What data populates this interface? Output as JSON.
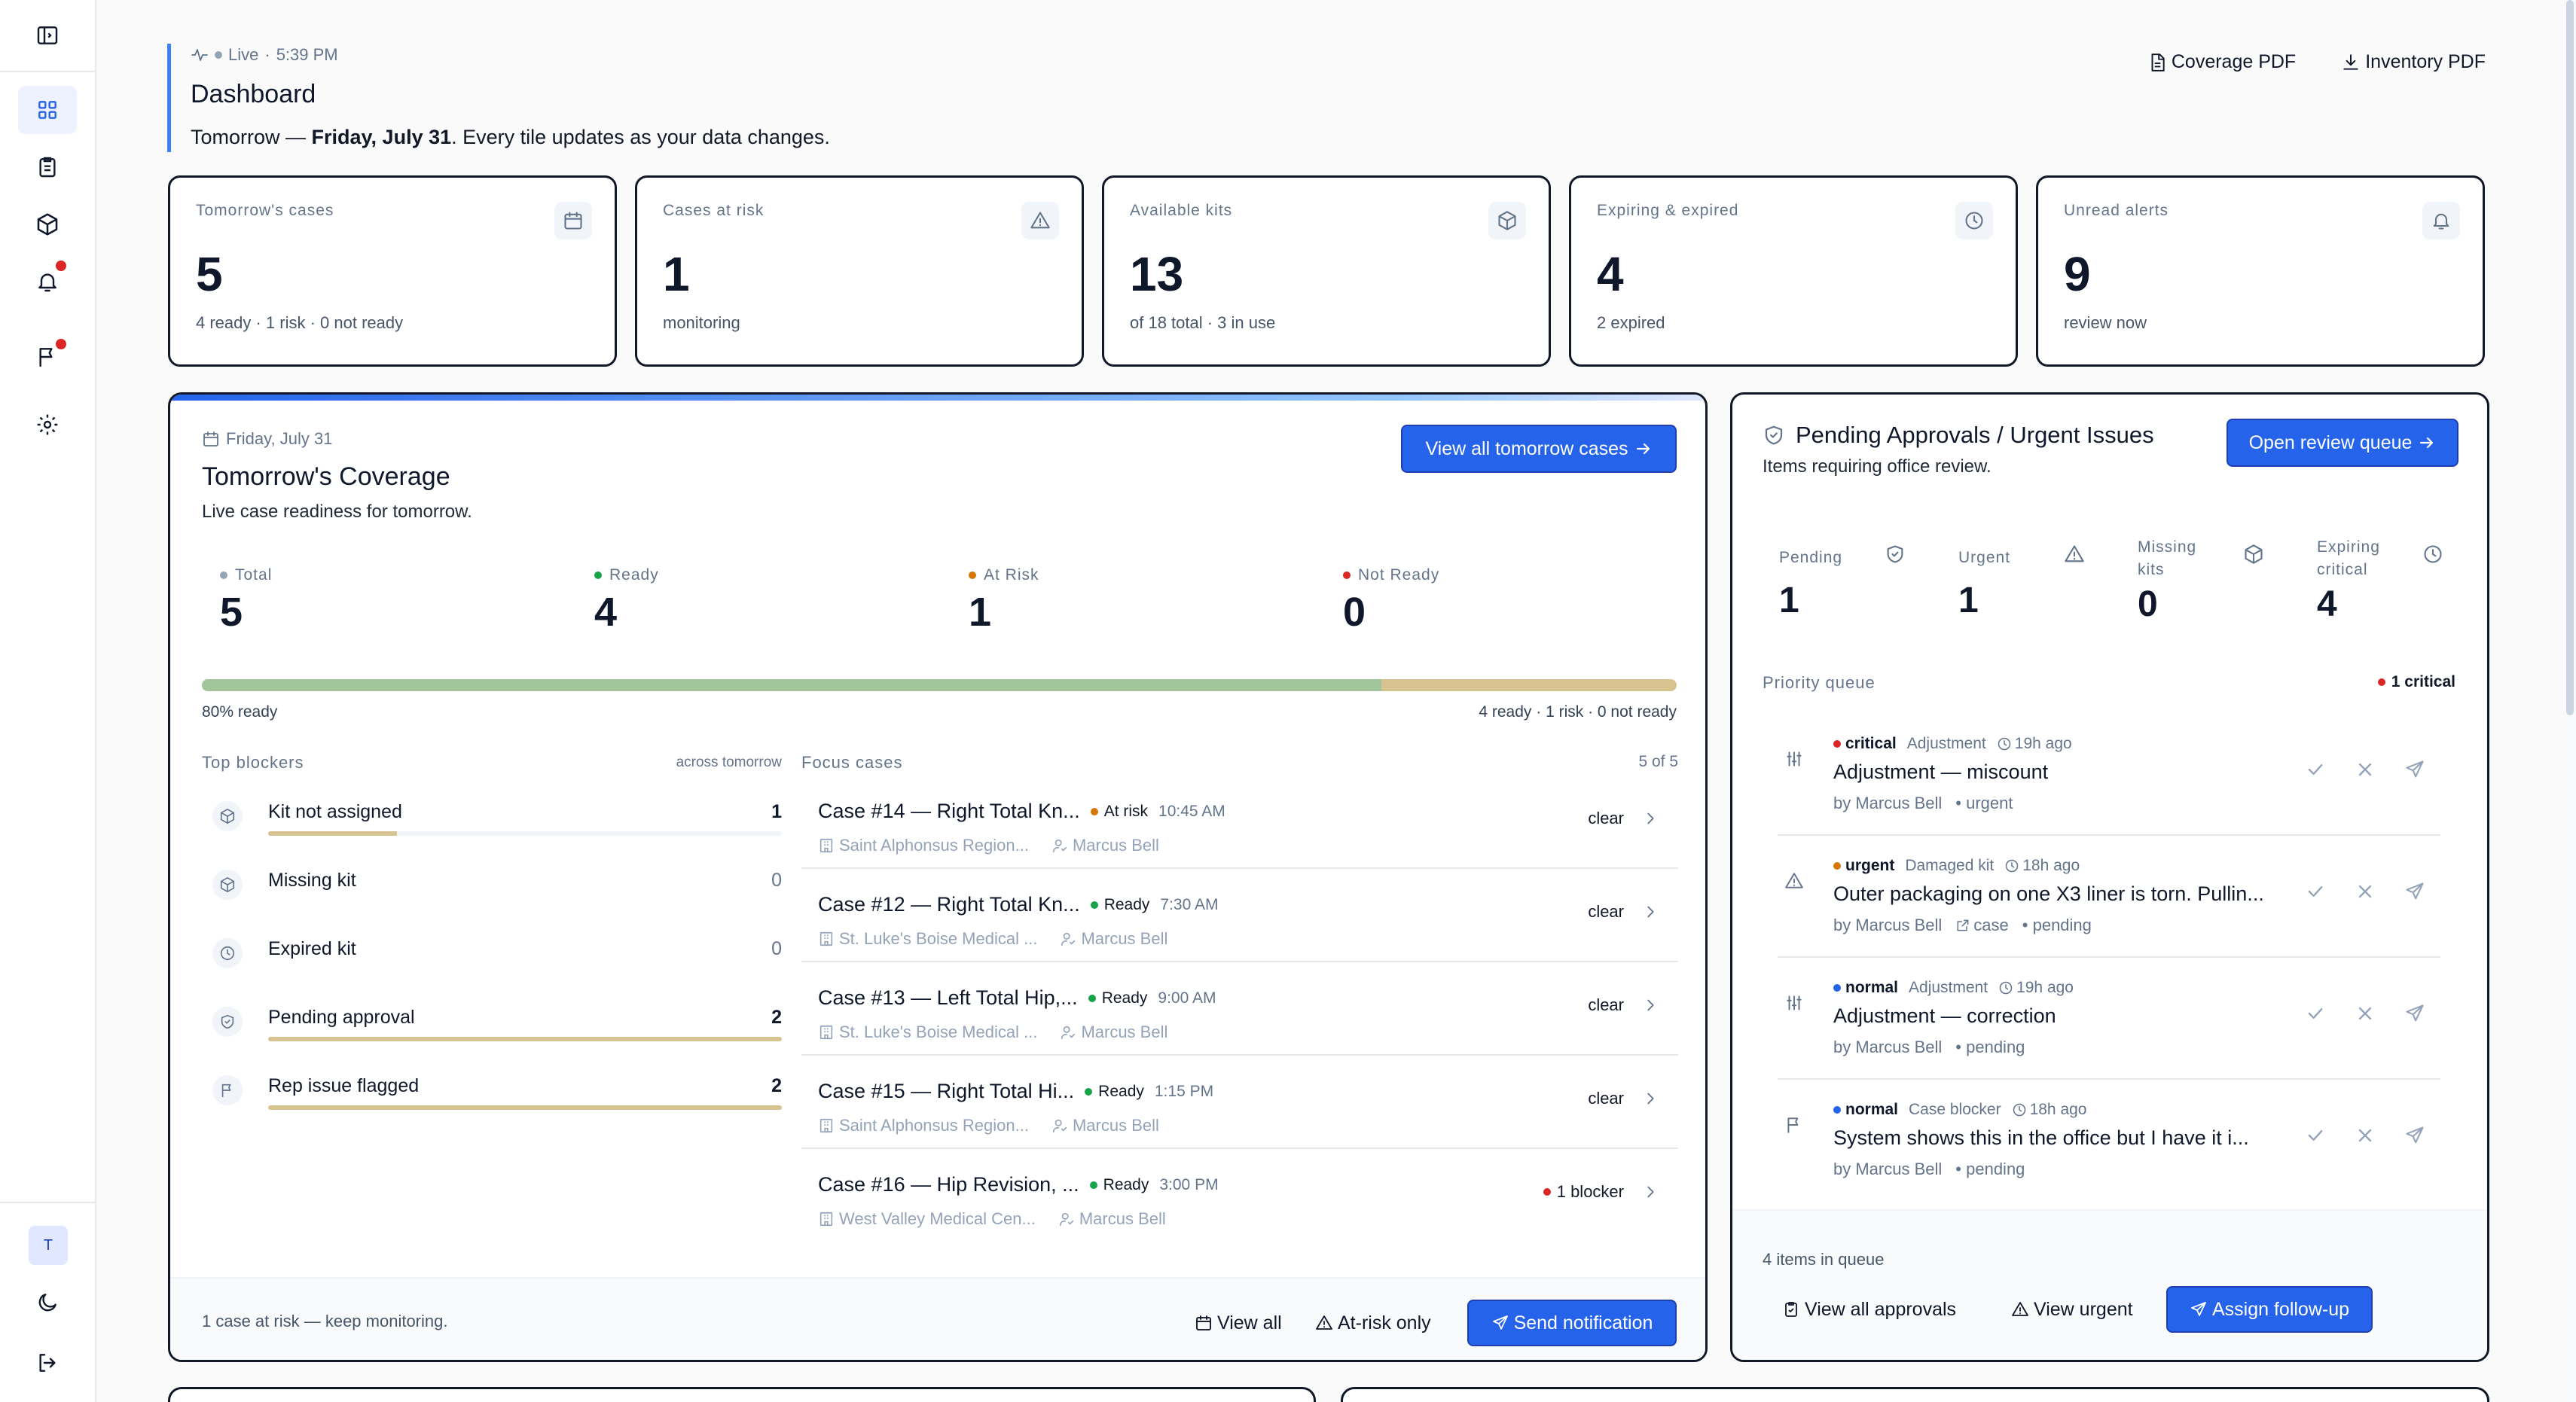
{
  "header": {
    "live": "Live",
    "time": "5:39 PM",
    "title": "Dashboard",
    "subtitle_prefix": "Tomorrow — ",
    "subtitle_date": "Friday, July 31",
    "subtitle_suffix": ". Every tile updates as your data changes.",
    "coverage_pdf": "Coverage PDF",
    "inventory_pdf": "Inventory PDF"
  },
  "sidebar": {
    "avatar": "T"
  },
  "tiles": [
    {
      "label": "Tomorrow's cases",
      "value": "5",
      "sub": "4 ready · 1 risk · 0 not ready",
      "icon": "calendar-icon"
    },
    {
      "label": "Cases at risk",
      "value": "1",
      "sub": "monitoring",
      "icon": "alert-triangle-icon"
    },
    {
      "label": "Available kits",
      "value": "13",
      "sub": "of 18 total · 3 in use",
      "icon": "package-icon"
    },
    {
      "label": "Expiring & expired",
      "value": "4",
      "sub": "2 expired",
      "icon": "clock-icon"
    },
    {
      "label": "Unread alerts",
      "value": "9",
      "sub": "review now",
      "icon": "bell-icon"
    }
  ],
  "coverage": {
    "date": "Friday, July 31",
    "title": "Tomorrow's Coverage",
    "subtitle": "Live case readiness for tomorrow.",
    "view_all_button": "View all tomorrow cases",
    "metrics": [
      {
        "label": "Total",
        "value": "5",
        "color": "#94a3b8"
      },
      {
        "label": "Ready",
        "value": "4",
        "color": "#16a34a"
      },
      {
        "label": "At Risk",
        "value": "1",
        "color": "#d97706"
      },
      {
        "label": "Not Ready",
        "value": "0",
        "color": "#dc2626"
      }
    ],
    "ready_fraction": 0.8,
    "ready_pct": "80% ready",
    "ready_summary": "4 ready · 1 risk · 0 not ready",
    "blockers_title": "Top blockers",
    "blockers_scope": "across tomorrow",
    "blockers": [
      {
        "label": "Kit not assigned",
        "count": 1,
        "icon": "package-icon"
      },
      {
        "label": "Missing kit",
        "count": 0,
        "icon": "package-icon"
      },
      {
        "label": "Expired kit",
        "count": 0,
        "icon": "clock-icon"
      },
      {
        "label": "Pending approval",
        "count": 2,
        "icon": "shield-icon"
      },
      {
        "label": "Rep issue flagged",
        "count": 2,
        "icon": "flag-icon"
      }
    ],
    "blocker_max": 2,
    "focus_title": "Focus cases",
    "focus_count": "5 of 5",
    "cases": [
      {
        "title": "Case #14 — Right Total Kn...",
        "status": "At risk",
        "status_color": "#d97706",
        "time": "10:45 AM",
        "hospital": "Saint Alphonsus Region...",
        "rep": "Marcus Bell",
        "right": "clear"
      },
      {
        "title": "Case #12 — Right Total Kn...",
        "status": "Ready",
        "status_color": "#16a34a",
        "time": "7:30 AM",
        "hospital": "St. Luke's Boise Medical ...",
        "rep": "Marcus Bell",
        "right": "clear"
      },
      {
        "title": "Case #13 — Left Total Hip,...",
        "status": "Ready",
        "status_color": "#16a34a",
        "time": "9:00 AM",
        "hospital": "St. Luke's Boise Medical ...",
        "rep": "Marcus Bell",
        "right": "clear"
      },
      {
        "title": "Case #15 — Right Total Hi...",
        "status": "Ready",
        "status_color": "#16a34a",
        "time": "1:15 PM",
        "hospital": "Saint Alphonsus Region...",
        "rep": "Marcus Bell",
        "right": "clear"
      },
      {
        "title": "Case #16 — Hip Revision, ...",
        "status": "Ready",
        "status_color": "#16a34a",
        "time": "3:00 PM",
        "hospital": "West Valley Medical Cen...",
        "rep": "Marcus Bell",
        "right": "1 blocker"
      }
    ],
    "footer_msg": "1 case at risk — keep monitoring.",
    "footer_view_all": "View all",
    "footer_at_risk": "At-risk only",
    "footer_send": "Send notification"
  },
  "approvals": {
    "title": "Pending Approvals / Urgent Issues",
    "subtitle": "Items requiring office review.",
    "open_button": "Open review queue",
    "metrics": [
      {
        "label": "Pending",
        "value": "1",
        "icon": "shield-icon"
      },
      {
        "label": "Urgent",
        "value": "1",
        "icon": "alert-triangle-icon"
      },
      {
        "label": "Missing kits",
        "value": "0",
        "icon": "package-icon"
      },
      {
        "label": "Expiring critical",
        "value": "4",
        "icon": "clock-icon"
      }
    ],
    "queue_title": "Priority queue",
    "queue_badge": "1 critical",
    "items": [
      {
        "severity": "critical",
        "sev_color": "#dc2626",
        "category": "Adjustment",
        "ago": "19h ago",
        "title": "Adjustment — miscount",
        "by": "by Marcus Bell",
        "link": "",
        "state": "urgent",
        "icon": "sliders-icon"
      },
      {
        "severity": "urgent",
        "sev_color": "#d97706",
        "category": "Damaged kit",
        "ago": "18h ago",
        "title": "Outer packaging on one X3 liner is torn. Pullin...",
        "by": "by Marcus Bell",
        "link": "case",
        "state": "pending",
        "icon": "alert-triangle-icon"
      },
      {
        "severity": "normal",
        "sev_color": "#2563eb",
        "category": "Adjustment",
        "ago": "19h ago",
        "title": "Adjustment — correction",
        "by": "by Marcus Bell",
        "link": "",
        "state": "pending",
        "icon": "sliders-icon"
      },
      {
        "severity": "normal",
        "sev_color": "#2563eb",
        "category": "Case blocker",
        "ago": "18h ago",
        "title": "System shows this in the office but I have it i...",
        "by": "by Marcus Bell",
        "link": "",
        "state": "pending",
        "icon": "flag-icon"
      }
    ],
    "queue_count": "4 items in queue",
    "footer_view_all": "View all approvals",
    "footer_view_urgent": "View urgent",
    "footer_assign": "Assign follow-up"
  },
  "colors": {
    "accent": "#2563eb",
    "risk": "#d6c38f",
    "ready": "#a3c59b"
  }
}
